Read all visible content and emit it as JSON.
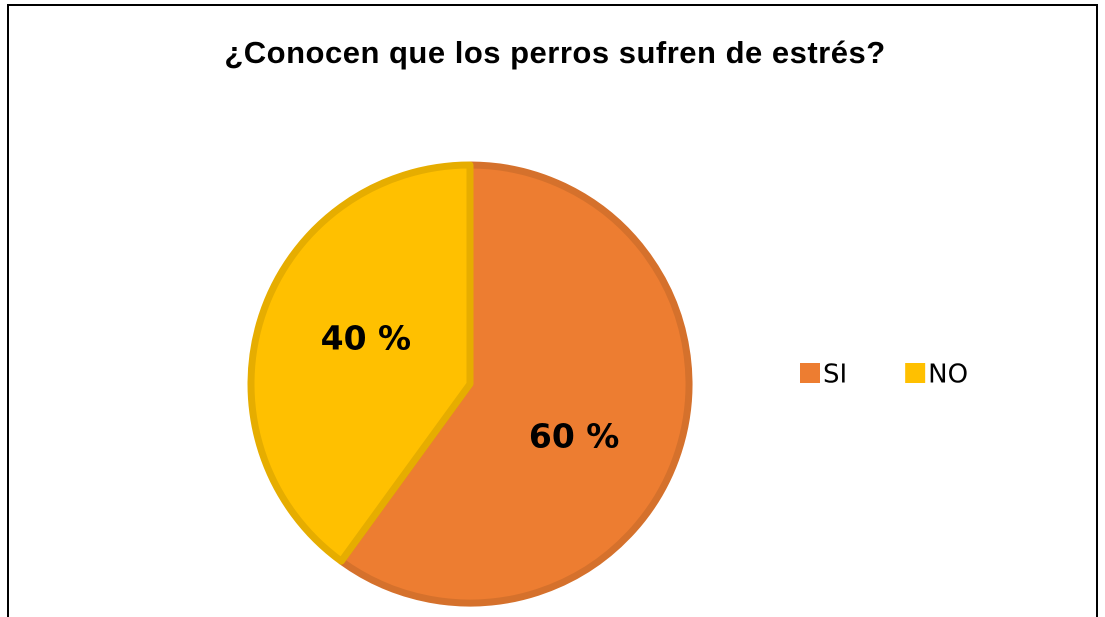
{
  "chart_data": {
    "type": "pie",
    "title": "¿Conocen que los perros sufren de estrés?",
    "categories": [
      "SI",
      "NO"
    ],
    "values": [
      60,
      40
    ],
    "value_labels": [
      "60 %",
      "40 %"
    ],
    "colors": [
      "#ED7D31",
      "#FFC000"
    ],
    "legend": "right"
  }
}
